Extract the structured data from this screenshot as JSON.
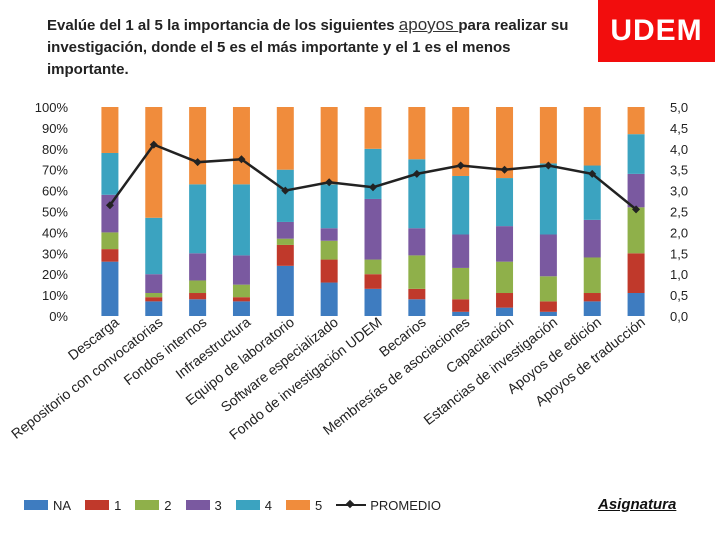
{
  "title": {
    "part1": "Evalúe del 1 al 5 la importancia de los siguientes ",
    "highlight": "apoyos ",
    "part2": "para realizar su investigación, donde el 5 es el más importante y el 1 es el menos importante."
  },
  "logo": "UDEM",
  "footer_label": "Asignatura",
  "chart_data": {
    "type": "bar",
    "stacked": true,
    "categories": [
      "Descarga",
      "Repositorio con convocatorias",
      "Fondos internos",
      "Infraestructura",
      "Equipo de laboratorio",
      "Software especializado",
      "Fondo de investigación UDEM",
      "Becarios",
      "Membresías de asociaciones",
      "Capacitación",
      "Estancias de investigación",
      "Apoyos de edición",
      "Apoyos de traducción"
    ],
    "series": [
      {
        "name": "NA",
        "color": "#3e7cc0",
        "values": [
          26,
          7,
          8,
          7,
          24,
          16,
          13,
          8,
          2,
          4,
          2,
          7,
          11
        ]
      },
      {
        "name": "1",
        "color": "#c0392b",
        "values": [
          6,
          2,
          3,
          2,
          10,
          11,
          7,
          5,
          6,
          7,
          5,
          4,
          19
        ]
      },
      {
        "name": "2",
        "color": "#8fb04a",
        "values": [
          8,
          2,
          6,
          6,
          3,
          9,
          7,
          16,
          15,
          15,
          12,
          17,
          22
        ]
      },
      {
        "name": "3",
        "color": "#7a59a0",
        "values": [
          18,
          9,
          13,
          14,
          8,
          6,
          29,
          13,
          16,
          17,
          20,
          18,
          16
        ]
      },
      {
        "name": "4",
        "color": "#3ba3c0",
        "values": [
          20,
          27,
          33,
          34,
          25,
          21,
          24,
          33,
          28,
          23,
          34,
          26,
          19
        ]
      },
      {
        "name": "5",
        "color": "#f08c3c",
        "values": [
          22,
          53,
          37,
          37,
          30,
          37,
          20,
          25,
          33,
          34,
          27,
          28,
          13
        ]
      }
    ],
    "line_series": {
      "name": "PROMEDIO",
      "color": "#222222",
      "values": [
        2.65,
        4.1,
        3.68,
        3.75,
        3.0,
        3.2,
        3.08,
        3.4,
        3.6,
        3.5,
        3.6,
        3.4,
        2.55
      ]
    },
    "y_left": {
      "ticks": [
        "0%",
        "10%",
        "20%",
        "30%",
        "40%",
        "50%",
        "60%",
        "70%",
        "80%",
        "90%",
        "100%"
      ],
      "range": [
        0,
        100
      ]
    },
    "y_right": {
      "ticks": [
        "0,0",
        "0,5",
        "1,0",
        "1,5",
        "2,0",
        "2,5",
        "3,0",
        "3,5",
        "4,0",
        "4,5",
        "5,0"
      ],
      "range": [
        0,
        5
      ]
    },
    "legend_position": "bottom"
  }
}
